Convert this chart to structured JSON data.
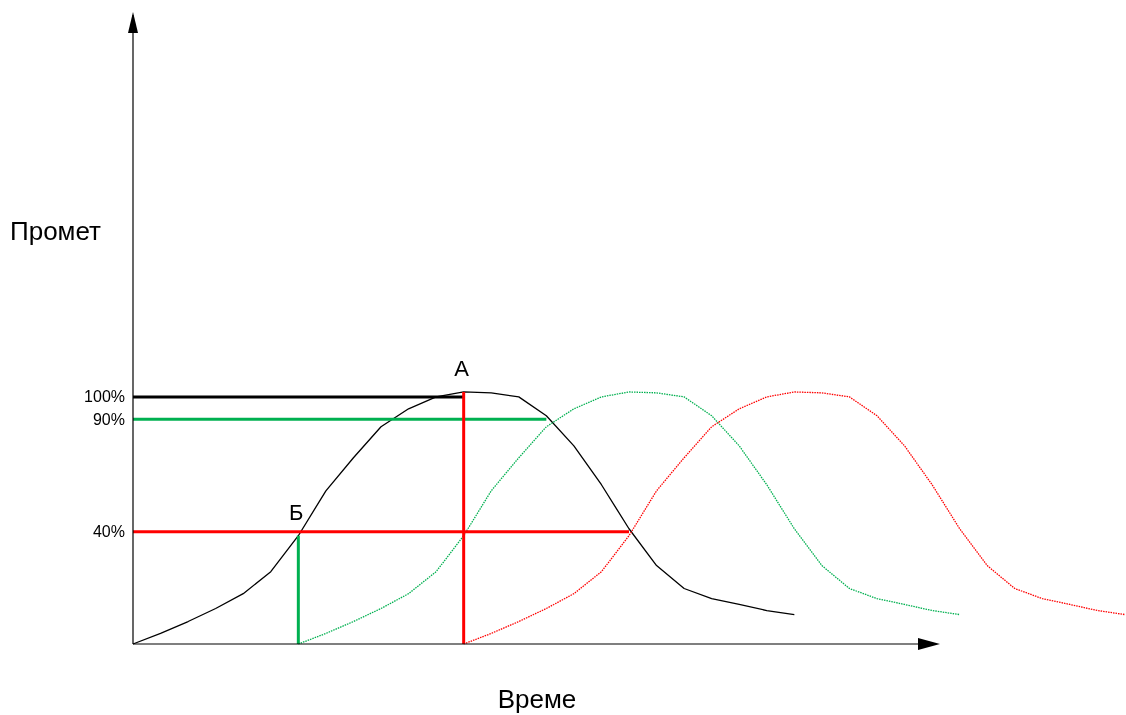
{
  "chart_data": {
    "type": "line",
    "xlabel": "Време",
    "ylabel": "Промет",
    "categories": [
      null,
      null,
      null,
      null,
      null,
      null,
      null,
      null,
      null,
      null,
      null,
      null,
      null,
      null,
      null,
      null,
      null,
      null,
      null,
      null,
      null,
      null,
      null,
      null,
      null,
      null,
      null,
      null,
      null,
      null,
      null,
      null,
      null,
      null,
      null,
      null,
      null
    ],
    "ylim": [
      -10,
      270
    ],
    "tick_labels": "y",
    "yticks": [
      {
        "value": 40,
        "label": "40%"
      },
      {
        "value": 90,
        "label": "90%"
      },
      {
        "value": 100,
        "label": "100%"
      }
    ],
    "series": [
      {
        "color": "#000000",
        "line_style": "solid",
        "values": [
          -10,
          -5.3,
          0,
          5.8,
          12.4,
          22.2,
          38.2,
          58.2,
          72.9,
          86.7,
          94.7,
          100,
          102.2,
          101.8,
          100,
          91.6,
          78.2,
          60.9,
          41.3,
          24.9,
          14.7,
          10.2,
          7.6,
          4.9,
          3.1,
          null,
          null,
          null,
          null,
          null,
          null,
          null,
          null,
          null,
          null,
          null,
          null
        ]
      },
      {
        "color": "#00b050",
        "line_style": "dotted",
        "values": [
          null,
          null,
          null,
          null,
          null,
          null,
          -10,
          -5.3,
          0,
          5.8,
          12.4,
          22.2,
          38.2,
          58.2,
          72.9,
          86.7,
          94.7,
          100,
          102.2,
          101.8,
          100,
          91.6,
          78.2,
          60.9,
          41.3,
          24.9,
          14.7,
          10.2,
          7.6,
          4.9,
          3.1,
          null,
          null,
          null,
          null,
          null,
          null
        ]
      },
      {
        "color": "#ff0000",
        "line_style": "dotted",
        "values": [
          null,
          null,
          null,
          null,
          null,
          null,
          null,
          null,
          null,
          null,
          null,
          null,
          -10,
          -5.3,
          0,
          5.8,
          12.4,
          22.2,
          38.2,
          58.2,
          72.9,
          86.7,
          94.7,
          100,
          102.2,
          101.8,
          100,
          91.6,
          78.2,
          60.9,
          41.3,
          24.9,
          14.7,
          10.2,
          7.6,
          4.9,
          3.1
        ]
      },
      {
        "color": "#000000",
        "line_style": "solid",
        "values": [
          100,
          100,
          100,
          100,
          100,
          100,
          100,
          100,
          100,
          100,
          100,
          100,
          100,
          null,
          null,
          null,
          null,
          null,
          null,
          null,
          null,
          null,
          null,
          null,
          null,
          null,
          null,
          null,
          null,
          null,
          null,
          null,
          null,
          null,
          null,
          null,
          null
        ]
      },
      {
        "color": "#00b050",
        "line_style": "solid",
        "values": [
          90,
          90,
          90,
          90,
          90,
          90,
          90,
          90,
          90,
          90,
          90,
          90,
          90,
          90,
          90,
          90,
          null,
          null,
          null,
          null,
          null,
          null,
          null,
          null,
          null,
          null,
          null,
          null,
          null,
          null,
          null,
          null,
          null,
          null,
          null,
          null,
          null
        ]
      },
      {
        "color": "#ff0000",
        "line_style": "solid",
        "values": [
          40,
          40,
          40,
          40,
          40,
          40,
          40,
          40,
          40,
          40,
          40,
          40,
          40,
          40,
          40,
          40,
          40,
          40,
          40,
          null,
          null,
          null,
          null,
          null,
          null,
          null,
          null,
          null,
          null,
          null,
          null,
          null,
          null,
          null,
          null,
          null,
          null
        ]
      }
    ],
    "annotations": [
      "Б",
      "А"
    ]
  }
}
